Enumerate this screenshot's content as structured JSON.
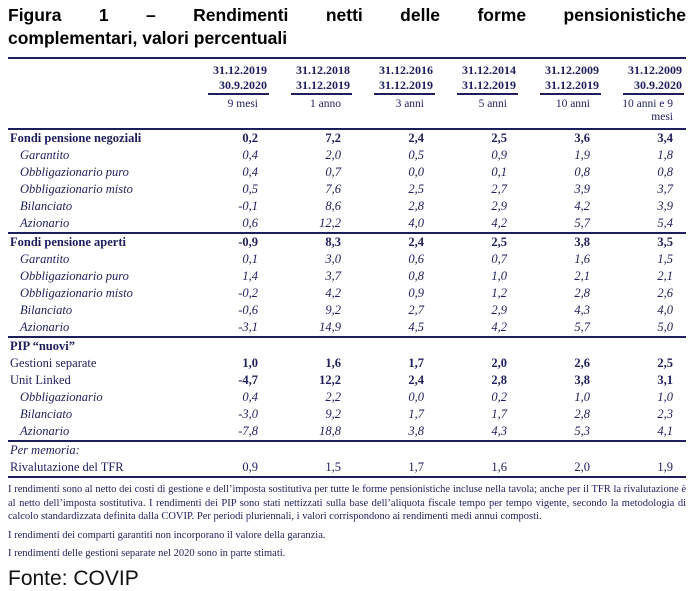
{
  "title": {
    "line1": "Figura 1 – Rendimenti netti delle forme pensionistiche",
    "line2": "complementari, valori percentuali"
  },
  "table": {
    "columns": [
      {
        "date_from": "31.12.2019",
        "date_to": "30.9.2020",
        "period": "9 mesi"
      },
      {
        "date_from": "31.12.2018",
        "date_to": "31.12.2019",
        "period": "1 anno"
      },
      {
        "date_from": "31.12.2016",
        "date_to": "31.12.2019",
        "period": "3 anni"
      },
      {
        "date_from": "31.12.2014",
        "date_to": "31.12.2019",
        "period": "5 anni"
      },
      {
        "date_from": "31.12.2009",
        "date_to": "31.12.2019",
        "period": "10 anni"
      },
      {
        "date_from": "31.12.2009",
        "date_to": "30.9.2020",
        "period": "10 anni e 9 mesi"
      }
    ],
    "rows": [
      {
        "label": "Fondi pensione negoziali",
        "style": "section",
        "rule_above": false,
        "values": [
          "0,2",
          "7,2",
          "2,4",
          "2,5",
          "3,6",
          "3,4"
        ]
      },
      {
        "label": "Garantito",
        "style": "sub",
        "rule_above": false,
        "values": [
          "0,4",
          "2,0",
          "0,5",
          "0,9",
          "1,9",
          "1,8"
        ]
      },
      {
        "label": "Obbligazionario puro",
        "style": "sub",
        "rule_above": false,
        "values": [
          "0,4",
          "0,7",
          "0,0",
          "0,1",
          "0,8",
          "0,8"
        ]
      },
      {
        "label": "Obbligazionario misto",
        "style": "sub",
        "rule_above": false,
        "values": [
          "0,5",
          "7,6",
          "2,5",
          "2,7",
          "3,9",
          "3,7"
        ]
      },
      {
        "label": "Bilanciato",
        "style": "sub",
        "rule_above": false,
        "values": [
          "-0,1",
          "8,6",
          "2,8",
          "2,9",
          "4,2",
          "3,9"
        ]
      },
      {
        "label": "Azionario",
        "style": "sub",
        "rule_above": false,
        "values": [
          "0,6",
          "12,2",
          "4,0",
          "4,2",
          "5,7",
          "5,4"
        ]
      },
      {
        "label": "Fondi pensione aperti",
        "style": "section",
        "rule_above": true,
        "values": [
          "-0,9",
          "8,3",
          "2,4",
          "2,5",
          "3,8",
          "3,5"
        ]
      },
      {
        "label": "Garantito",
        "style": "sub",
        "rule_above": false,
        "values": [
          "0,1",
          "3,0",
          "0,6",
          "0,7",
          "1,6",
          "1,5"
        ]
      },
      {
        "label": "Obbligazionario puro",
        "style": "sub",
        "rule_above": false,
        "values": [
          "1,4",
          "3,7",
          "0,8",
          "1,0",
          "2,1",
          "2,1"
        ]
      },
      {
        "label": "Obbligazionario misto",
        "style": "sub",
        "rule_above": false,
        "values": [
          "-0,2",
          "4,2",
          "0,9",
          "1,2",
          "2,8",
          "2,6"
        ]
      },
      {
        "label": "Bilanciato",
        "style": "sub",
        "rule_above": false,
        "values": [
          "-0,6",
          "9,2",
          "2,7",
          "2,9",
          "4,3",
          "4,0"
        ]
      },
      {
        "label": "Azionario",
        "style": "sub",
        "rule_above": false,
        "values": [
          "-3,1",
          "14,9",
          "4,5",
          "4,2",
          "5,7",
          "5,0"
        ]
      },
      {
        "label": "PIP “nuovi”",
        "style": "section",
        "rule_above": true,
        "values": []
      },
      {
        "label": "Gestioni separate",
        "style": "plainbold",
        "rule_above": false,
        "values": [
          "1,0",
          "1,6",
          "1,7",
          "2,0",
          "2,6",
          "2,5"
        ]
      },
      {
        "label": "Unit Linked",
        "style": "plainbold",
        "rule_above": false,
        "values": [
          "-4,7",
          "12,2",
          "2,4",
          "2,8",
          "3,8",
          "3,1"
        ]
      },
      {
        "label": "Obbligazionario",
        "style": "sub",
        "rule_above": false,
        "values": [
          "0,4",
          "2,2",
          "0,0",
          "0,2",
          "1,0",
          "1,0"
        ]
      },
      {
        "label": "Bilanciato",
        "style": "sub",
        "rule_above": false,
        "values": [
          "-3,0",
          "9,2",
          "1,7",
          "1,7",
          "2,8",
          "2,3"
        ]
      },
      {
        "label": "Azionario",
        "style": "sub",
        "rule_above": false,
        "values": [
          "-7,8",
          "18,8",
          "3,8",
          "4,3",
          "5,3",
          "4,1"
        ]
      },
      {
        "label": "Per memoria:",
        "style": "note",
        "rule_above": true,
        "values": []
      },
      {
        "label": "Rivalutazione del TFR",
        "style": "plain",
        "rule_above": false,
        "values": [
          "0,9",
          "1,5",
          "1,7",
          "1,6",
          "2,0",
          "1,9"
        ]
      }
    ]
  },
  "footnotes": [
    "I rendimenti sono al netto dei costi di gestione e dell’imposta sostitutiva per tutte le forme pensionistiche incluse nella tavola; anche per il TFR la rivalutazione è al netto dell’imposta sostitutiva. I rendimenti dei PIP sono stati nettizzati sulla base dell’aliquota fiscale tempo per tempo vigente, secondo la metodologia di calcolo standardizzata definita dalla COVIP. Per periodi pluriennali, i valori corrispondono ai rendimenti medi annui composti.",
    "I rendimenti dei comparti garantiti non incorporano il valore della garanzia.",
    "I rendimenti delle gestioni separate nel 2020 sono in parte stimati."
  ],
  "source": "Fonte: COVIP",
  "colors": {
    "ink": "#1e1e5c",
    "title": "#000000"
  }
}
